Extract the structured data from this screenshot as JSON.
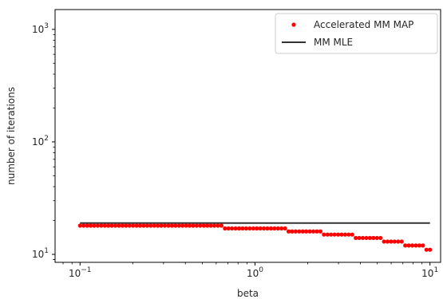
{
  "chart_data": {
    "type": "scatter",
    "xscale": "log",
    "yscale": "log",
    "xlim": [
      0.072,
      11.5
    ],
    "ylim": [
      8.5,
      1500
    ],
    "xlabel": "beta",
    "ylabel": "number of iterations",
    "xticks": [
      0.1,
      1,
      10
    ],
    "xtick_labels": [
      {
        "base": "10",
        "exp": "−1"
      },
      {
        "base": "10",
        "exp": "0"
      },
      {
        "base": "10",
        "exp": "1"
      }
    ],
    "yticks": [
      10,
      100,
      1000
    ],
    "ytick_labels": [
      {
        "base": "10",
        "exp": "1"
      },
      {
        "base": "10",
        "exp": "2"
      },
      {
        "base": "10",
        "exp": "3"
      }
    ],
    "grid": false,
    "legend_position": "top-right",
    "series": [
      {
        "name": "Accelerated MM MAP",
        "kind": "points",
        "color": "#ff0000",
        "step_levels": [
          {
            "from": 0.1,
            "to": 0.65,
            "y": 18
          },
          {
            "from": 0.65,
            "to": 1.5,
            "y": 17
          },
          {
            "from": 1.5,
            "to": 2.4,
            "y": 16
          },
          {
            "from": 2.4,
            "to": 3.6,
            "y": 15
          },
          {
            "from": 3.6,
            "to": 5.3,
            "y": 14
          },
          {
            "from": 5.3,
            "to": 7.2,
            "y": 13
          },
          {
            "from": 7.2,
            "to": 9.5,
            "y": 12
          },
          {
            "from": 9.5,
            "to": 10.0,
            "y": 11
          }
        ]
      },
      {
        "name": "MM MLE",
        "kind": "line",
        "color": "#333333",
        "x": [
          0.1,
          10
        ],
        "y": [
          19,
          19
        ]
      }
    ]
  }
}
